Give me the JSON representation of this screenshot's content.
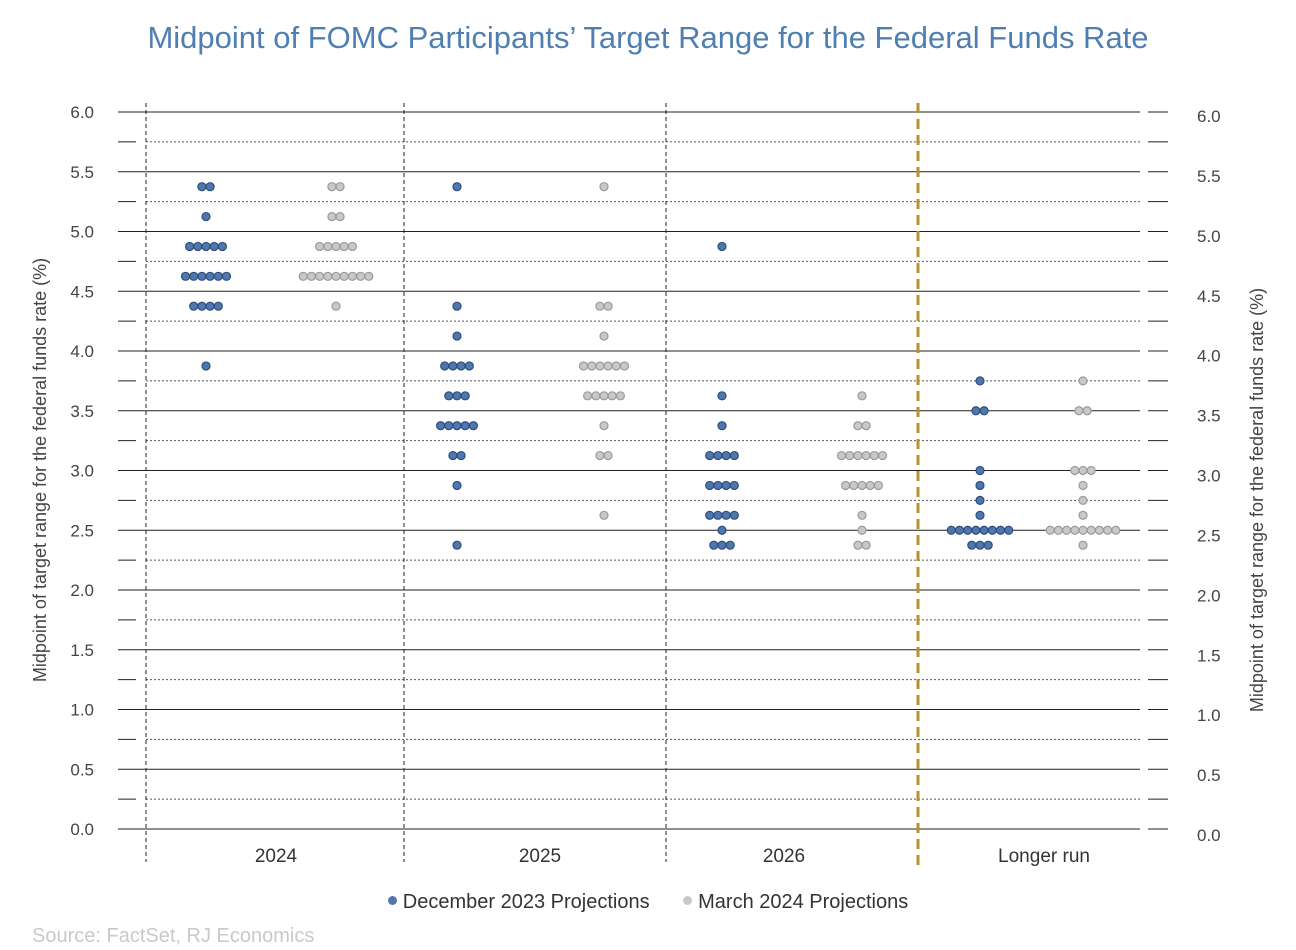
{
  "chart_data": {
    "type": "scatter",
    "title": "Midpoint of FOMC Participants’ Target Range for the Federal Funds Rate",
    "ylabel": "Midpoint  of target range for the federal funds rate (%)",
    "ylabel_right": "Midpoint  of target range for the federal funds rate (%)",
    "ylim": [
      0,
      6
    ],
    "yticks": [
      "0.0",
      "0.5",
      "1.0",
      "1.5",
      "2.0",
      "2.5",
      "3.0",
      "3.5",
      "4.0",
      "4.5",
      "5.0",
      "5.5",
      "6.0"
    ],
    "categories": [
      "2024",
      "2025",
      "2026",
      "Longer run"
    ],
    "grid": true,
    "legend_position": "bottom",
    "series": [
      {
        "name": "December 2023 Projections",
        "color": "#4f76ad",
        "dots": [
          {
            "period": "2024",
            "values": [
              {
                "y": 5.375,
                "count": 2
              },
              {
                "y": 5.125,
                "count": 1
              },
              {
                "y": 4.875,
                "count": 5
              },
              {
                "y": 4.625,
                "count": 6
              },
              {
                "y": 4.375,
                "count": 4
              },
              {
                "y": 3.875,
                "count": 1
              }
            ]
          },
          {
            "period": "2025",
            "values": [
              {
                "y": 5.375,
                "count": 1
              },
              {
                "y": 4.375,
                "count": 1
              },
              {
                "y": 4.125,
                "count": 1
              },
              {
                "y": 3.875,
                "count": 4
              },
              {
                "y": 3.625,
                "count": 3
              },
              {
                "y": 3.375,
                "count": 5
              },
              {
                "y": 3.125,
                "count": 2
              },
              {
                "y": 2.875,
                "count": 1
              },
              {
                "y": 2.375,
                "count": 1
              }
            ]
          },
          {
            "period": "2026",
            "values": [
              {
                "y": 4.875,
                "count": 1
              },
              {
                "y": 3.625,
                "count": 1
              },
              {
                "y": 3.375,
                "count": 1
              },
              {
                "y": 3.125,
                "count": 4
              },
              {
                "y": 2.875,
                "count": 4
              },
              {
                "y": 2.625,
                "count": 4
              },
              {
                "y": 2.5,
                "count": 1
              },
              {
                "y": 2.375,
                "count": 3
              }
            ]
          },
          {
            "period": "Longer run",
            "values": [
              {
                "y": 3.75,
                "count": 1
              },
              {
                "y": 3.5,
                "count": 2
              },
              {
                "y": 3.0,
                "count": 1
              },
              {
                "y": 2.875,
                "count": 1
              },
              {
                "y": 2.75,
                "count": 1
              },
              {
                "y": 2.625,
                "count": 1
              },
              {
                "y": 2.5,
                "count": 8
              },
              {
                "y": 2.375,
                "count": 3
              }
            ]
          }
        ]
      },
      {
        "name": "March 2024 Projections",
        "color": "#c8c8c8",
        "dots": [
          {
            "period": "2024",
            "values": [
              {
                "y": 5.375,
                "count": 2
              },
              {
                "y": 5.125,
                "count": 2
              },
              {
                "y": 4.875,
                "count": 5
              },
              {
                "y": 4.625,
                "count": 9
              },
              {
                "y": 4.375,
                "count": 1
              }
            ]
          },
          {
            "period": "2025",
            "values": [
              {
                "y": 5.375,
                "count": 1
              },
              {
                "y": 4.375,
                "count": 2
              },
              {
                "y": 4.125,
                "count": 1
              },
              {
                "y": 3.875,
                "count": 6
              },
              {
                "y": 3.625,
                "count": 5
              },
              {
                "y": 3.375,
                "count": 1
              },
              {
                "y": 3.125,
                "count": 2
              },
              {
                "y": 2.625,
                "count": 1
              }
            ]
          },
          {
            "period": "2026",
            "values": [
              {
                "y": 3.625,
                "count": 1
              },
              {
                "y": 3.375,
                "count": 2
              },
              {
                "y": 3.125,
                "count": 6
              },
              {
                "y": 2.875,
                "count": 5
              },
              {
                "y": 2.625,
                "count": 1
              },
              {
                "y": 2.5,
                "count": 1
              },
              {
                "y": 2.375,
                "count": 2
              }
            ]
          },
          {
            "period": "Longer run",
            "values": [
              {
                "y": 3.75,
                "count": 1
              },
              {
                "y": 3.5,
                "count": 2
              },
              {
                "y": 3.0,
                "count": 3
              },
              {
                "y": 2.875,
                "count": 1
              },
              {
                "y": 2.75,
                "count": 1
              },
              {
                "y": 2.625,
                "count": 1
              },
              {
                "y": 2.5,
                "count": 9
              },
              {
                "y": 2.375,
                "count": 1
              }
            ]
          }
        ]
      }
    ]
  },
  "source": "Source: FactSet, RJ Economics",
  "colors": {
    "title": "#4f7fb0",
    "divider_longer_run": "#b8902e"
  }
}
